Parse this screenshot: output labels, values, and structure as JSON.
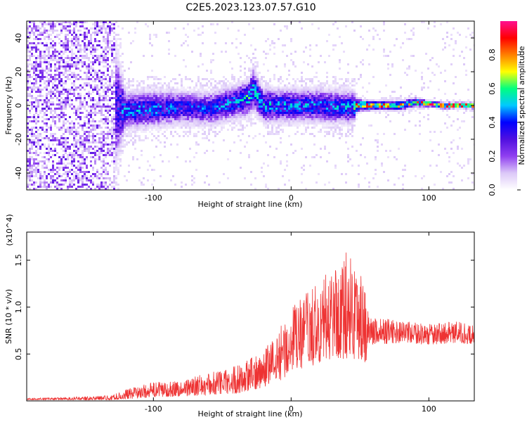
{
  "title": "C2E5.2023.123.07.57.G10",
  "chart_data": [
    {
      "type": "heatmap",
      "name": "spectrogram",
      "xlabel": "Height of straight line (km)",
      "ylabel": "Frequency (Hz)",
      "xlim": [
        -192,
        133
      ],
      "ylim": [
        -50,
        50
      ],
      "xticks": [
        -100,
        0,
        100
      ],
      "yticks": [
        -40,
        -20,
        0,
        20,
        40
      ],
      "colorbar": {
        "label": "Normalized spectral amplitude",
        "range": [
          0.0,
          1.0
        ],
        "ticks": [
          0.0,
          0.2,
          0.4,
          0.6,
          0.8
        ],
        "colormap": [
          "#ffffff",
          "#dcc8f8",
          "#9040f0",
          "#5010e0",
          "#0000ff",
          "#00c8ff",
          "#00ff80",
          "#ffff00",
          "#ff8000",
          "#ff0000",
          "#ff1090"
        ]
      },
      "band_profile": {
        "x": [
          -192,
          -130,
          -120,
          -100,
          -80,
          -60,
          -40,
          -30,
          -28,
          -20,
          0,
          20,
          40,
          45,
          48,
          60,
          80,
          90,
          100,
          110,
          133
        ],
        "center_hz": [
          0,
          0,
          -3,
          -2,
          -1,
          -2,
          2,
          5,
          10,
          0,
          0,
          0,
          -1,
          -1,
          0,
          0,
          0,
          2,
          1,
          0,
          0
        ],
        "halfwidth_hz": [
          50,
          50,
          12,
          12,
          11,
          11,
          11,
          12,
          14,
          11,
          11,
          11,
          11,
          11,
          4,
          3,
          3,
          3,
          2,
          2,
          2
        ],
        "peak_amplitude": [
          0.25,
          0.3,
          0.45,
          0.45,
          0.4,
          0.4,
          0.45,
          0.55,
          0.5,
          0.5,
          0.45,
          0.45,
          0.45,
          0.45,
          0.85,
          0.8,
          0.8,
          0.7,
          0.8,
          0.95,
          0.95
        ]
      }
    },
    {
      "type": "line",
      "name": "snr",
      "xlabel": "Height of straight line (km)",
      "ylabel": "SNR (10 * v/v)",
      "y_multiplier": "(x10^4)",
      "xlim": [
        -192,
        133
      ],
      "ylim": [
        0,
        1.8
      ],
      "xticks": [
        -100,
        0,
        100
      ],
      "yticks": [
        0.5,
        1.0,
        1.5
      ],
      "color": "#ee3333",
      "envelope": {
        "x": [
          -192,
          -160,
          -130,
          -120,
          -100,
          -80,
          -60,
          -40,
          -30,
          -20,
          -10,
          0,
          10,
          20,
          30,
          40,
          50,
          55,
          56,
          60,
          80,
          100,
          120,
          133
        ],
        "baseline": [
          0.01,
          0.01,
          0.01,
          0.02,
          0.04,
          0.05,
          0.06,
          0.08,
          0.1,
          0.15,
          0.2,
          0.3,
          0.35,
          0.4,
          0.45,
          0.45,
          0.45,
          0.4,
          0.6,
          0.6,
          0.62,
          0.6,
          0.62,
          0.6
        ],
        "peak": [
          0.03,
          0.04,
          0.06,
          0.12,
          0.2,
          0.22,
          0.3,
          0.38,
          0.45,
          0.55,
          0.75,
          1.0,
          1.15,
          1.25,
          1.45,
          1.6,
          1.5,
          1.1,
          0.95,
          0.9,
          0.85,
          0.82,
          0.85,
          0.8
        ]
      }
    }
  ]
}
